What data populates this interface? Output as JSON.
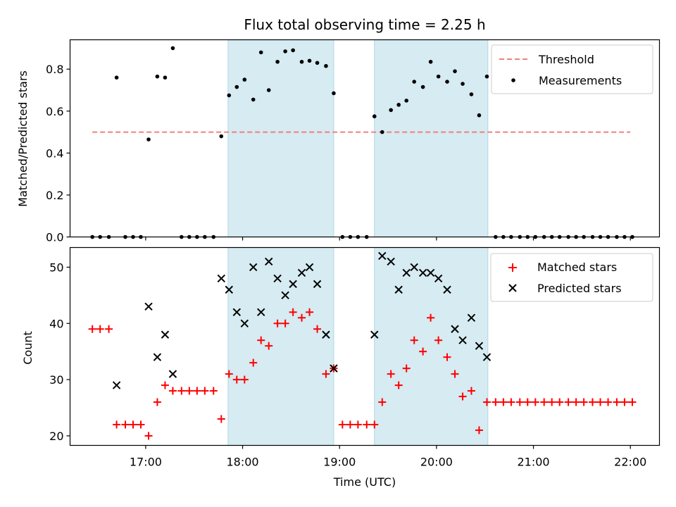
{
  "chart_data": [
    {
      "type": "scatter",
      "title": "Flux total observing time = 2.25 h",
      "xlabel": "",
      "ylabel": "Matched/Predicted stars",
      "xlim_hours": [
        16.22,
        22.3
      ],
      "ylim": [
        0,
        0.94
      ],
      "yticks": [
        0.0,
        0.2,
        0.4,
        0.6,
        0.8
      ],
      "ytick_labels": [
        "0.0",
        "0.2",
        "0.4",
        "0.6",
        "0.8"
      ],
      "xticks_hours": [
        17,
        18,
        19,
        20,
        21,
        22
      ],
      "shaded_spans_hours": [
        [
          17.85,
          18.94
        ],
        [
          19.36,
          20.53
        ]
      ],
      "threshold": {
        "name": "Threshold",
        "value": 0.5,
        "x_range_hours": [
          16.45,
          22.0
        ],
        "color": "#f08080",
        "style": "dashed"
      },
      "series": [
        {
          "name": "Measurements",
          "color": "#000000",
          "marker": "dot",
          "x": [
            16.45,
            16.53,
            16.62,
            16.7,
            16.79,
            16.87,
            16.95,
            17.03,
            17.12,
            17.2,
            17.28,
            17.37,
            17.45,
            17.53,
            17.61,
            17.7,
            17.78,
            17.86,
            17.94,
            18.02,
            18.11,
            18.19,
            18.27,
            18.36,
            18.44,
            18.52,
            18.61,
            18.69,
            18.77,
            18.86,
            18.94,
            19.03,
            19.11,
            19.19,
            19.28,
            19.36,
            19.44,
            19.53,
            19.61,
            19.69,
            19.77,
            19.86,
            19.94,
            20.02,
            20.11,
            20.19,
            20.27,
            20.36,
            20.44,
            20.52,
            20.61,
            20.69,
            20.77,
            20.86,
            20.94,
            21.02,
            21.11,
            21.19,
            21.27,
            21.36,
            21.44,
            21.52,
            21.61,
            21.69,
            21.77,
            21.86,
            21.94,
            22.02
          ],
          "y": [
            0.0,
            0.0,
            0.0,
            0.76,
            0.0,
            0.0,
            0.0,
            0.465,
            0.765,
            0.76,
            0.9,
            0.0,
            0.0,
            0.0,
            0.0,
            0.0,
            0.48,
            0.675,
            0.715,
            0.75,
            0.655,
            0.88,
            0.7,
            0.835,
            0.885,
            0.89,
            0.835,
            0.84,
            0.83,
            0.815,
            0.685,
            0.0,
            0.0,
            0.0,
            0.0,
            0.575,
            0.5,
            0.605,
            0.63,
            0.65,
            0.74,
            0.715,
            0.835,
            0.765,
            0.74,
            0.79,
            0.73,
            0.68,
            0.58,
            0.765,
            0.0,
            0.0,
            0.0,
            0.0,
            0.0,
            0.0,
            0.0,
            0.0,
            0.0,
            0.0,
            0.0,
            0.0,
            0.0,
            0.0,
            0.0,
            0.0,
            0.0,
            0.0
          ]
        }
      ],
      "legend": {
        "position": "upper-right",
        "entries": [
          "Threshold",
          "Measurements"
        ]
      }
    },
    {
      "type": "scatter",
      "title": "",
      "xlabel": "Time (UTC)",
      "ylabel": "Count",
      "xlim_hours": [
        16.22,
        22.3
      ],
      "ylim": [
        18.3,
        53.5
      ],
      "yticks": [
        20,
        30,
        40,
        50
      ],
      "ytick_labels": [
        "20",
        "30",
        "40",
        "50"
      ],
      "xticks_hours": [
        17,
        18,
        19,
        20,
        21,
        22
      ],
      "xtick_labels": [
        "17:00",
        "18:00",
        "19:00",
        "20:00",
        "21:00",
        "22:00"
      ],
      "shaded_spans_hours": [
        [
          17.85,
          18.94
        ],
        [
          19.36,
          20.53
        ]
      ],
      "series": [
        {
          "name": "Matched stars",
          "color": "#ff0000",
          "marker": "plus",
          "x": [
            16.45,
            16.53,
            16.62,
            16.7,
            16.79,
            16.87,
            16.95,
            17.03,
            17.12,
            17.2,
            17.28,
            17.37,
            17.45,
            17.53,
            17.61,
            17.7,
            17.78,
            17.86,
            17.94,
            18.02,
            18.11,
            18.19,
            18.27,
            18.36,
            18.44,
            18.52,
            18.61,
            18.69,
            18.77,
            18.86,
            18.94,
            19.03,
            19.11,
            19.19,
            19.28,
            19.36,
            19.44,
            19.53,
            19.61,
            19.69,
            19.77,
            19.86,
            19.94,
            20.02,
            20.11,
            20.19,
            20.27,
            20.36,
            20.44,
            20.52,
            20.61,
            20.69,
            20.77,
            20.86,
            20.94,
            21.02,
            21.11,
            21.19,
            21.27,
            21.36,
            21.44,
            21.52,
            21.61,
            21.69,
            21.77,
            21.86,
            21.94,
            22.02
          ],
          "y": [
            39,
            39,
            39,
            22,
            22,
            22,
            22,
            20,
            26,
            29,
            28,
            28,
            28,
            28,
            28,
            28,
            23,
            31,
            30,
            30,
            33,
            37,
            36,
            40,
            40,
            42,
            41,
            42,
            39,
            31,
            32,
            22,
            22,
            22,
            22,
            22,
            26,
            31,
            29,
            32,
            37,
            35,
            41,
            37,
            34,
            31,
            27,
            28,
            21,
            26,
            26,
            26,
            26,
            26,
            26,
            26,
            26,
            26,
            26,
            26,
            26,
            26,
            26,
            26,
            26,
            26,
            26,
            26
          ]
        },
        {
          "name": "Predicted stars",
          "color": "#000000",
          "marker": "x",
          "x": [
            16.7,
            17.03,
            17.12,
            17.2,
            17.28,
            17.78,
            17.86,
            17.94,
            18.02,
            18.11,
            18.19,
            18.27,
            18.36,
            18.44,
            18.52,
            18.61,
            18.69,
            18.77,
            18.86,
            18.94,
            19.36,
            19.44,
            19.53,
            19.61,
            19.69,
            19.77,
            19.86,
            19.94,
            20.02,
            20.11,
            20.19,
            20.27,
            20.36,
            20.44,
            20.52
          ],
          "y": [
            29,
            43,
            34,
            38,
            31,
            48,
            46,
            42,
            40,
            50,
            42,
            51,
            48,
            45,
            47,
            49,
            50,
            47,
            38,
            32,
            38,
            52,
            51,
            46,
            49,
            50,
            49,
            49,
            48,
            46,
            39,
            37,
            41,
            36,
            34
          ]
        }
      ],
      "legend": {
        "position": "upper-right",
        "entries": [
          "Matched stars",
          "Predicted stars"
        ]
      }
    }
  ]
}
